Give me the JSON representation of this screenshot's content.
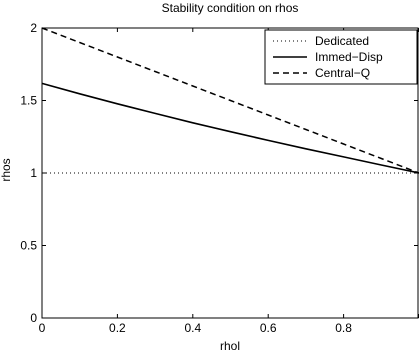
{
  "chart_data": {
    "type": "line",
    "title": "Stability condition on rhos",
    "xlabel": "rhol",
    "ylabel": "rhos",
    "xlim": [
      0,
      1
    ],
    "ylim": [
      0,
      2
    ],
    "x_ticks": [
      0,
      0.2,
      0.4,
      0.6,
      0.8,
      1
    ],
    "x_tick_labels": [
      "0",
      "0.2",
      "0.4",
      "0.6",
      "0.8",
      ""
    ],
    "y_ticks": [
      0,
      0.5,
      1,
      1.5,
      2
    ],
    "y_tick_labels": [
      "0",
      "0.5",
      "1",
      "1.5",
      "2"
    ],
    "grid": false,
    "legend_position": "top-right",
    "series": [
      {
        "name": "Dedicated",
        "style": "dotted",
        "color": "#000000",
        "x": [
          0,
          0.2,
          0.4,
          0.6,
          0.8,
          1.0
        ],
        "y": [
          1,
          1,
          1,
          1,
          1,
          1
        ]
      },
      {
        "name": "Immed−Disp",
        "style": "solid",
        "color": "#000000",
        "x": [
          0,
          0.1,
          0.2,
          0.3,
          0.4,
          0.5,
          0.6,
          0.7,
          0.8,
          0.9,
          1.0
        ],
        "y": [
          1.618,
          1.546,
          1.477,
          1.411,
          1.346,
          1.285,
          1.225,
          1.167,
          1.111,
          1.055,
          1.0
        ]
      },
      {
        "name": "Central−Q",
        "style": "dashed",
        "color": "#000000",
        "x": [
          0,
          0.1,
          0.2,
          0.3,
          0.4,
          0.5,
          0.6,
          0.7,
          0.8,
          0.9,
          1.0
        ],
        "y": [
          2.0,
          1.9,
          1.8,
          1.7,
          1.6,
          1.5,
          1.4,
          1.3,
          1.2,
          1.1,
          1.0
        ]
      }
    ]
  }
}
